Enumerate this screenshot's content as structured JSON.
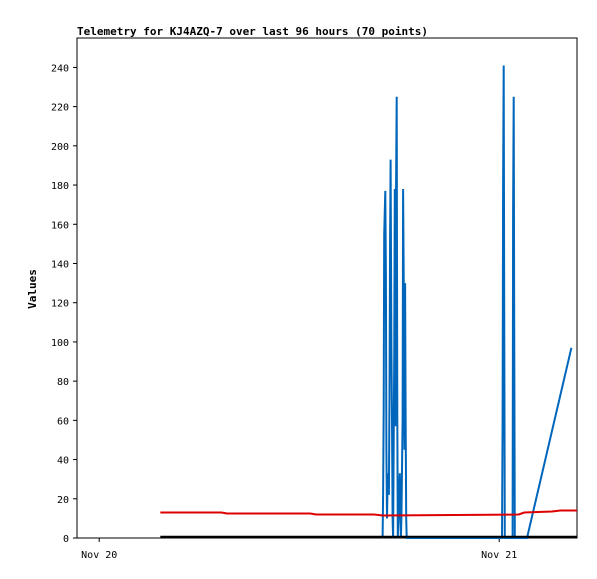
{
  "chart_data": {
    "type": "line",
    "title": "Telemetry for KJ4AZQ-7 over last 96 hours (70 points)",
    "xlabel": "",
    "ylabel": "Values",
    "ylim": [
      0,
      255
    ],
    "yticks": [
      0,
      20,
      40,
      60,
      80,
      100,
      120,
      140,
      160,
      180,
      200,
      220,
      240
    ],
    "xlim": [
      "Nov 19 22:40",
      "Nov 21 04:40"
    ],
    "xticks": [
      {
        "label": "Nov 20",
        "t": "Nov 20 00:00"
      },
      {
        "label": "Nov 21",
        "t": "Nov 21 00:00"
      }
    ],
    "grid": false,
    "legend": "none",
    "series": [
      {
        "color": "#0066bb",
        "x": [
          "Nov 20 17:00",
          "Nov 20 17:02",
          "Nov 20 17:04",
          "Nov 20 17:06",
          "Nov 20 17:10",
          "Nov 20 17:12",
          "Nov 20 17:14",
          "Nov 20 17:16",
          "Nov 20 17:18",
          "Nov 20 17:21",
          "Nov 20 17:23",
          "Nov 20 17:25",
          "Nov 20 17:27",
          "Nov 20 17:29",
          "Nov 20 17:32",
          "Nov 20 17:34",
          "Nov 20 17:36",
          "Nov 20 17:38",
          "Nov 20 17:42",
          "Nov 20 17:44",
          "Nov 20 17:46",
          "Nov 20 17:48",
          "Nov 20 17:51",
          "Nov 20 17:53",
          "Nov 20 17:55",
          "Nov 20 17:57",
          "Nov 20 17:59",
          "Nov 20 18:02",
          "Nov 20 18:04",
          "Nov 20 18:06",
          "Nov 20 18:08",
          "Nov 20 18:12",
          "Nov 20 18:14",
          "Nov 20 18:16",
          "Nov 20 18:19",
          "Nov 20 18:21",
          "Nov 20 18:23",
          "Nov 20 18:25",
          "Nov 20 18:27",
          "Nov 20 18:30",
          "Nov 20 18:32",
          "Nov 20 18:34",
          "Nov 20 18:36",
          "Nov 20 18:38",
          "Nov 21 00:10",
          "Nov 21 00:12",
          "Nov 21 00:14",
          "Nov 21 00:16",
          "Nov 21 00:18",
          "Nov 21 00:20",
          "Nov 21 00:48",
          "Nov 21 00:50",
          "Nov 21 00:52",
          "Nov 21 00:54",
          "Nov 21 00:56",
          "Nov 21 01:40",
          "Nov 21 04:20"
        ],
        "y": [
          0,
          22,
          67,
          155,
          177,
          133,
          45,
          10,
          28,
          33,
          22,
          72,
          153,
          193,
          97,
          60,
          10,
          0,
          90,
          178,
          57,
          168,
          225,
          62,
          0,
          10,
          22,
          33,
          12,
          0,
          10,
          60,
          178,
          133,
          45,
          130,
          65,
          10,
          0,
          0,
          0,
          0,
          0,
          0,
          0,
          60,
          180,
          241,
          120,
          0,
          0,
          167,
          225,
          112,
          0,
          0,
          97
        ]
      },
      {
        "color": "#dd0000",
        "x": [
          "Nov 20 03:40",
          "Nov 20 07:20",
          "Nov 20 07:40",
          "Nov 20 12:40",
          "Nov 20 13:00",
          "Nov 20 16:30",
          "Nov 20 17:00",
          "Nov 21 01:10",
          "Nov 21 01:30",
          "Nov 21 03:10",
          "Nov 21 03:40",
          "Nov 21 04:40"
        ],
        "y": [
          13,
          13,
          12.5,
          12.5,
          12,
          12,
          11.5,
          12,
          13,
          13.5,
          14,
          14
        ]
      },
      {
        "color": "#000000",
        "x": [
          "Nov 20 03:40",
          "Nov 21 04:40"
        ],
        "y": [
          0.6,
          0.6
        ]
      }
    ]
  }
}
